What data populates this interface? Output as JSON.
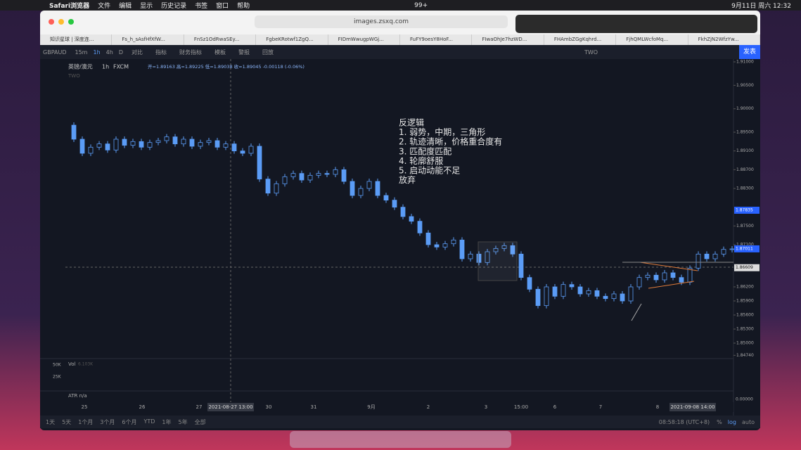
{
  "menubar": {
    "app": "Safari浏览器",
    "items": [
      "文件",
      "编辑",
      "显示",
      "历史记录",
      "书签",
      "窗口",
      "帮助"
    ],
    "badge": "99+",
    "clock": "9月11日 周六 12:32"
  },
  "browser": {
    "url": "images.zsxq.com",
    "tabs": [
      "知识星球 | 深度连...",
      "Fs_h_sAsfHfXfW...",
      "FnSz1OdRwaSEy...",
      "FgbeKRotwf1ZgQ...",
      "FIDmWwugpWGj...",
      "FuFY9oesY8HoF...",
      "FIwaOhJe7hzWD...",
      "FHAmbZGgKqhrd...",
      "FjhQMLWcfoMq...",
      "FkhZjN2WfzYw..."
    ]
  },
  "toolbar": {
    "symbol": "GBPAUD",
    "intervals": [
      "15m",
      "1h",
      "4h",
      "D"
    ],
    "tools": [
      "对比",
      "指标",
      "财务指标",
      "模板",
      "警报",
      "回放"
    ],
    "right": "TWO",
    "publish": "发表"
  },
  "legend": {
    "name": "英镑/澳元",
    "interval": "1h",
    "source": "FXCM",
    "ohlc": "开=1.89163 高=1.89225 低=1.89038 收=1.89045 -0.00118 (-0.06%)",
    "tag": "TWO"
  },
  "annotation": [
    "反逻辑",
    "1. 弱势，中期，三角形",
    "2. 轨迹清晰，价格重合度有",
    "3. 匹配度匹配",
    "4. 轮廓舒服",
    "5. 启动动能不足",
    "放弃"
  ],
  "chart_data": {
    "type": "line",
    "ylim": [
      1.847,
      1.9106
    ],
    "yticks": [
      {
        "value": 1.91,
        "label": "1.91000"
      },
      {
        "value": 1.905,
        "label": "1.90500"
      },
      {
        "value": 1.9,
        "label": "1.90000"
      },
      {
        "value": 1.895,
        "label": "1.89500"
      },
      {
        "value": 1.891,
        "label": "1.89100"
      },
      {
        "value": 1.887,
        "label": "1.88700"
      },
      {
        "value": 1.883,
        "label": "1.88300"
      },
      {
        "value": 1.875,
        "label": "1.87500"
      },
      {
        "value": 1.871,
        "label": "1.87100"
      },
      {
        "value": 1.862,
        "label": "1.86200"
      },
      {
        "value": 1.859,
        "label": "1.85900"
      },
      {
        "value": 1.856,
        "label": "1.85600"
      },
      {
        "value": 1.853,
        "label": "1.85300"
      },
      {
        "value": 1.85,
        "label": "1.85000"
      },
      {
        "value": 1.8474,
        "label": "1.84740"
      }
    ],
    "price_markers": [
      {
        "value": 1.87835,
        "label": "1.87835"
      },
      {
        "value": 1.87011,
        "label": "1.87011"
      },
      {
        "value": 1.86609,
        "label": "1.86609"
      }
    ],
    "x_labels": [
      "25",
      "26",
      "27",
      "2021-08-27  13:00",
      "30",
      "31",
      "9月",
      "2",
      "3",
      "15:00",
      "6",
      "7",
      "8",
      "2021-09-08  14:00"
    ],
    "series": [
      {
        "name": "GBPAUD",
        "color": "#5b9cf6",
        "values": [
          1.8965,
          1.8935,
          1.8905,
          1.8918,
          1.8925,
          1.8912,
          1.8935,
          1.8922,
          1.893,
          1.8918,
          1.8928,
          1.8932,
          1.894,
          1.8925,
          1.8935,
          1.892,
          1.8928,
          1.8932,
          1.8918,
          1.8925,
          1.891,
          1.8905,
          1.892,
          1.885,
          1.882,
          1.884,
          1.8855,
          1.8862,
          1.8848,
          1.8858,
          1.8862,
          1.886,
          1.887,
          1.8845,
          1.8815,
          1.883,
          1.8845,
          1.8815,
          1.8805,
          1.879,
          1.877,
          1.876,
          1.8735,
          1.871,
          1.8705,
          1.8712,
          1.872,
          1.868,
          1.869,
          1.8672,
          1.8695,
          1.8702,
          1.8708,
          1.869,
          1.864,
          1.8615,
          1.858,
          1.862,
          1.86,
          1.8625,
          1.862,
          1.8605,
          1.8612,
          1.86,
          1.8595,
          1.8605,
          1.859,
          1.862,
          1.864,
          1.8645,
          1.8635,
          1.865,
          1.864,
          1.863,
          1.866,
          1.869,
          1.868,
          1.869,
          1.87,
          1.8701
        ]
      }
    ],
    "volume_label": "Vol",
    "volume_value": "6.103K",
    "volume_ticks": [
      "50K",
      "25K"
    ],
    "atr": "ATR  n/a",
    "right_bottom": "0.00000"
  },
  "bottombar": {
    "ranges": [
      "1天",
      "5天",
      "1个月",
      "3个月",
      "6个月",
      "YTD",
      "1年",
      "5年",
      "全部"
    ],
    "time": "08:58:18 (UTC+8)",
    "options": [
      "%",
      "log",
      "auto"
    ]
  }
}
